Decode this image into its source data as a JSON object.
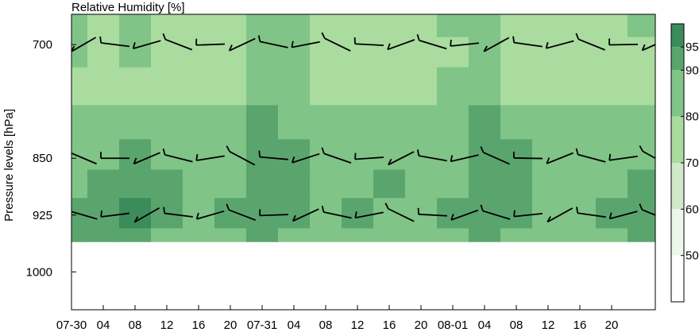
{
  "chart_data": {
    "type": "heatmap",
    "title": "Relative Humidity [%]",
    "ylabel": "Pressure levels [hPa]",
    "xlabel": "",
    "x_tick_labels": [
      "07-30",
      "04",
      "08",
      "12",
      "16",
      "20",
      "07-31",
      "04",
      "08",
      "12",
      "16",
      "20",
      "08-01",
      "04",
      "08",
      "12",
      "16",
      "20"
    ],
    "x_tick_hours": [
      0,
      4,
      8,
      12,
      16,
      20,
      24,
      28,
      32,
      36,
      40,
      44,
      48,
      52,
      56,
      60,
      64,
      68
    ],
    "xlim_hours": [
      0,
      73.5
    ],
    "y_tick_labels": [
      "700",
      "850",
      "925",
      "1000"
    ],
    "y_levels": [
      700,
      850,
      925,
      1000
    ],
    "ylim": [
      660,
      1050
    ],
    "colorbar": {
      "labels": [
        "50",
        "60",
        "70",
        "80",
        "90",
        "95"
      ],
      "bounds": [
        40,
        50,
        60,
        70,
        80,
        90,
        95,
        100
      ],
      "colors": [
        "#ffffff",
        "#eef7ec",
        "#cfe9c9",
        "#aadb9f",
        "#80c487",
        "#5aa56e",
        "#3b8c5a"
      ]
    },
    "rh_grid": {
      "levels": [
        680,
        700,
        760,
        800,
        850,
        880,
        925,
        960
      ],
      "hours": [
        0,
        4,
        8,
        12,
        16,
        20,
        24,
        28,
        32,
        36,
        40,
        44,
        48,
        52,
        56,
        60,
        64,
        68,
        72
      ],
      "values": [
        [
          82,
          75,
          82,
          78,
          76,
          74,
          85,
          84,
          76,
          74,
          74,
          76,
          80,
          85,
          74,
          76,
          74,
          78,
          80
        ],
        [
          80,
          74,
          80,
          76,
          70,
          72,
          86,
          84,
          74,
          72,
          72,
          74,
          78,
          84,
          72,
          74,
          72,
          76,
          78
        ],
        [
          78,
          74,
          78,
          76,
          72,
          74,
          88,
          84,
          76,
          74,
          74,
          76,
          80,
          88,
          76,
          74,
          76,
          78,
          74
        ],
        [
          80,
          84,
          86,
          84,
          80,
          82,
          92,
          88,
          80,
          80,
          80,
          82,
          84,
          92,
          86,
          80,
          82,
          84,
          82
        ],
        [
          84,
          88,
          92,
          88,
          84,
          86,
          92,
          90,
          86,
          86,
          88,
          84,
          86,
          94,
          92,
          86,
          84,
          86,
          88
        ],
        [
          88,
          90,
          94,
          90,
          84,
          86,
          92,
          90,
          86,
          88,
          90,
          86,
          86,
          94,
          90,
          82,
          86,
          86,
          90
        ],
        [
          90,
          94,
          96,
          92,
          84,
          90,
          94,
          92,
          88,
          90,
          88,
          88,
          92,
          94,
          90,
          86,
          86,
          90,
          92
        ],
        [
          90,
          92,
          92,
          86,
          82,
          86,
          92,
          88,
          84,
          88,
          88,
          86,
          88,
          92,
          86,
          84,
          86,
          88,
          90
        ]
      ]
    },
    "wind_barbs": {
      "hours": [
        0,
        4,
        8,
        12,
        16,
        20,
        24,
        28,
        32,
        36,
        40,
        44,
        48,
        52,
        56,
        60,
        64,
        68,
        72
      ],
      "levels": [
        700,
        850,
        925
      ]
    }
  }
}
